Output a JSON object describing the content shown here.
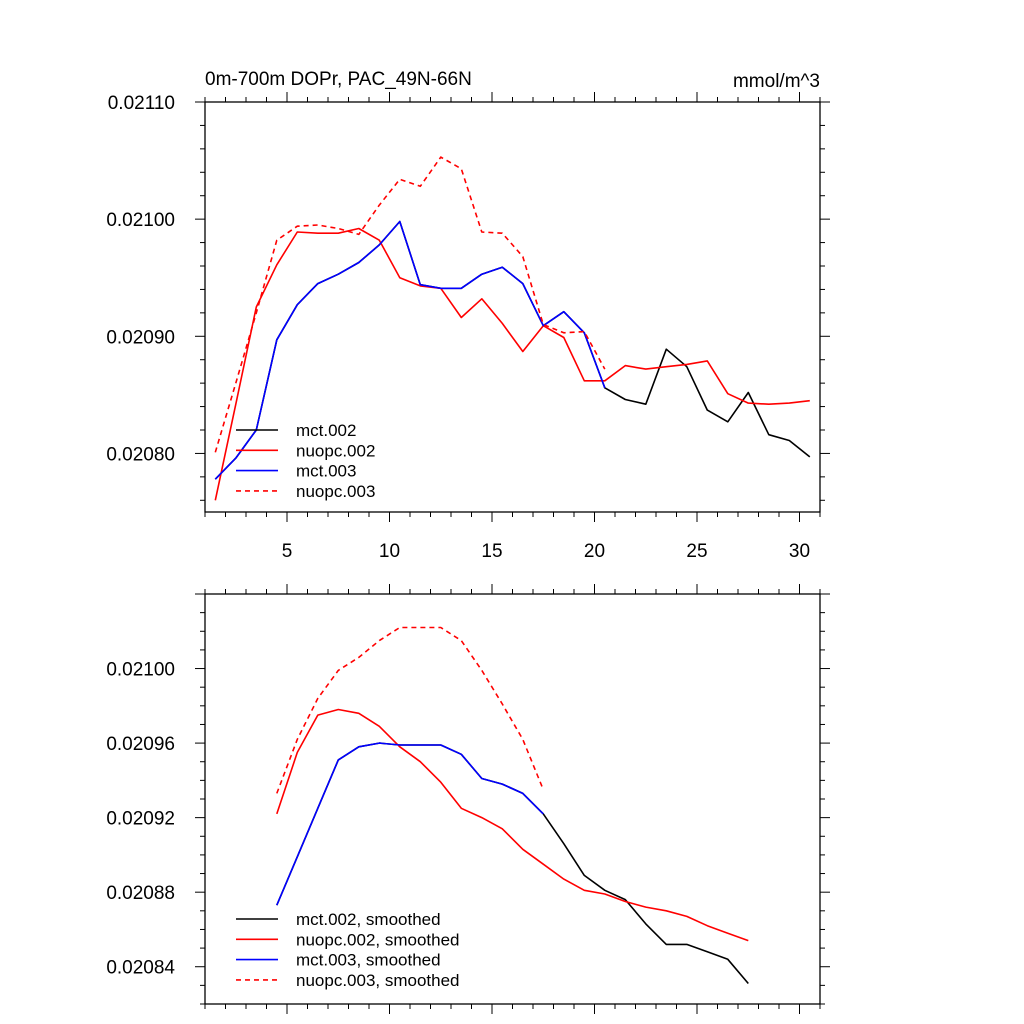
{
  "chart_data": [
    {
      "type": "line",
      "title": "0m-700m DOPr, PAC_49N-66N",
      "units": "mmol/m^3",
      "xlabel": "",
      "ylabel": "",
      "xlim": [
        1,
        31
      ],
      "ylim": [
        0.02075,
        0.0211
      ],
      "xticks": [
        5,
        10,
        15,
        20,
        25,
        30
      ],
      "yticks": [
        0.0208,
        0.0209,
        0.021,
        0.0211
      ],
      "ytick_labels": [
        "0.02080",
        "0.02090",
        "0.02100",
        "0.02110"
      ],
      "legend_position": "bottom-left",
      "series": [
        {
          "name": "mct.002",
          "color": "#000000",
          "dash": "solid",
          "x": [
            1.5,
            2.5,
            3.5,
            4.5,
            5.5,
            6.5,
            7.5,
            8.5,
            9.5,
            10.5,
            11.5,
            12.5,
            13.5,
            14.5,
            15.5,
            16.5,
            17.5,
            18.5,
            19.5,
            20.5,
            21.5,
            22.5,
            23.5,
            24.5,
            25.5,
            26.5,
            27.5,
            28.5,
            29.5,
            30.5
          ],
          "values": [
            0.020778,
            0.020796,
            0.02082,
            0.020897,
            0.020927,
            0.020945,
            0.020953,
            0.020963,
            0.020978,
            0.020998,
            0.020944,
            0.020941,
            0.020941,
            0.020953,
            0.020959,
            0.020945,
            0.020909,
            0.020921,
            0.020903,
            0.020856,
            0.020846,
            0.020842,
            0.020889,
            0.020874,
            0.020837,
            0.020827,
            0.020852,
            0.020816,
            0.020811,
            0.020797
          ]
        },
        {
          "name": "nuopc.002",
          "color": "#ff0000",
          "dash": "solid",
          "x": [
            1.5,
            2.5,
            3.5,
            4.5,
            5.5,
            6.5,
            7.5,
            8.5,
            9.5,
            10.5,
            11.5,
            12.5,
            13.5,
            14.5,
            15.5,
            16.5,
            17.5,
            18.5,
            19.5,
            20.5,
            21.5,
            22.5,
            23.5,
            24.5,
            25.5,
            26.5,
            27.5,
            28.5,
            29.5,
            30.5
          ],
          "values": [
            0.02076,
            0.020842,
            0.020925,
            0.020961,
            0.020989,
            0.020988,
            0.020988,
            0.020992,
            0.020982,
            0.02095,
            0.020943,
            0.020941,
            0.020916,
            0.020932,
            0.020911,
            0.020887,
            0.020909,
            0.020899,
            0.020862,
            0.020862,
            0.020875,
            0.020872,
            0.020874,
            0.020876,
            0.020879,
            0.020851,
            0.020843,
            0.020842,
            0.020843,
            0.020845
          ]
        },
        {
          "name": "mct.003",
          "color": "#0000ff",
          "dash": "solid",
          "x": [
            1.5,
            2.5,
            3.5,
            4.5,
            5.5,
            6.5,
            7.5,
            8.5,
            9.5,
            10.5,
            11.5,
            12.5,
            13.5,
            14.5,
            15.5,
            16.5,
            17.5,
            18.5,
            19.5,
            20.5
          ],
          "values": [
            0.020778,
            0.020796,
            0.02082,
            0.020897,
            0.020927,
            0.020945,
            0.020953,
            0.020963,
            0.020978,
            0.020998,
            0.020944,
            0.020941,
            0.020941,
            0.020953,
            0.020959,
            0.020945,
            0.020909,
            0.020921,
            0.020903,
            0.020856
          ]
        },
        {
          "name": "nuopc.003",
          "color": "#ff0000",
          "dash": "dashed",
          "x": [
            1.5,
            2.5,
            3.5,
            4.5,
            5.5,
            6.5,
            7.5,
            8.5,
            9.5,
            10.5,
            11.5,
            12.5,
            13.5,
            14.5,
            15.5,
            16.5,
            17.5,
            18.5,
            19.5,
            20.5
          ],
          "values": [
            0.020801,
            0.02086,
            0.02092,
            0.020982,
            0.020994,
            0.020995,
            0.020992,
            0.020987,
            0.021012,
            0.021034,
            0.021028,
            0.021053,
            0.021043,
            0.020989,
            0.020988,
            0.020968,
            0.02091,
            0.020903,
            0.020904,
            0.020872
          ]
        }
      ]
    },
    {
      "type": "line",
      "title": "",
      "xlabel": "",
      "ylabel": "",
      "xlim": [
        1,
        31
      ],
      "ylim": [
        0.02082,
        0.02104
      ],
      "xticks": [
        5,
        10,
        15,
        20,
        25,
        30
      ],
      "yticks": [
        0.02084,
        0.02088,
        0.02092,
        0.02096,
        0.021
      ],
      "ytick_labels": [
        "0.02084",
        "0.02088",
        "0.02092",
        "0.02096",
        "0.02100"
      ],
      "legend_position": "bottom-left",
      "series": [
        {
          "name": "mct.002, smoothed",
          "color": "#000000",
          "dash": "solid",
          "x": [
            4.5,
            5.5,
            6.5,
            7.5,
            8.5,
            9.5,
            10.5,
            11.5,
            12.5,
            13.5,
            14.5,
            15.5,
            16.5,
            17.5,
            18.5,
            19.5,
            20.5,
            21.5,
            22.5,
            23.5,
            24.5,
            25.5,
            26.5,
            27.5
          ],
          "values": [
            0.020873,
            0.020899,
            0.020925,
            0.020951,
            0.020958,
            0.02096,
            0.020959,
            0.020959,
            0.020959,
            0.020954,
            0.020941,
            0.020938,
            0.020933,
            0.020922,
            0.020906,
            0.020889,
            0.020881,
            0.020876,
            0.020863,
            0.020852,
            0.020852,
            0.020848,
            0.020844,
            0.020831
          ]
        },
        {
          "name": "nuopc.002, smoothed",
          "color": "#ff0000",
          "dash": "solid",
          "x": [
            4.5,
            5.5,
            6.5,
            7.5,
            8.5,
            9.5,
            10.5,
            11.5,
            12.5,
            13.5,
            14.5,
            15.5,
            16.5,
            17.5,
            18.5,
            19.5,
            20.5,
            21.5,
            22.5,
            23.5,
            24.5,
            25.5,
            26.5,
            27.5
          ],
          "values": [
            0.020922,
            0.020955,
            0.020975,
            0.020978,
            0.020976,
            0.020969,
            0.020958,
            0.02095,
            0.020939,
            0.020925,
            0.02092,
            0.020914,
            0.020903,
            0.020895,
            0.020887,
            0.020881,
            0.020879,
            0.020875,
            0.020872,
            0.02087,
            0.020867,
            0.020862,
            0.020858,
            0.020854
          ]
        },
        {
          "name": "mct.003, smoothed",
          "color": "#0000ff",
          "dash": "solid",
          "x": [
            4.5,
            5.5,
            6.5,
            7.5,
            8.5,
            9.5,
            10.5,
            11.5,
            12.5,
            13.5,
            14.5,
            15.5,
            16.5,
            17.5
          ],
          "values": [
            0.020873,
            0.020899,
            0.020925,
            0.020951,
            0.020958,
            0.02096,
            0.020959,
            0.020959,
            0.020959,
            0.020954,
            0.020941,
            0.020938,
            0.020933,
            0.020922
          ]
        },
        {
          "name": "nuopc.003, smoothed",
          "color": "#ff0000",
          "dash": "dashed",
          "x": [
            4.5,
            5.5,
            6.5,
            7.5,
            8.5,
            9.5,
            10.5,
            11.5,
            12.5,
            13.5,
            14.5,
            15.5,
            16.5,
            17.5
          ],
          "values": [
            0.020933,
            0.020962,
            0.020984,
            0.020999,
            0.021006,
            0.021015,
            0.021022,
            0.021022,
            0.021022,
            0.021015,
            0.020999,
            0.020981,
            0.020962,
            0.020935
          ]
        }
      ]
    }
  ]
}
